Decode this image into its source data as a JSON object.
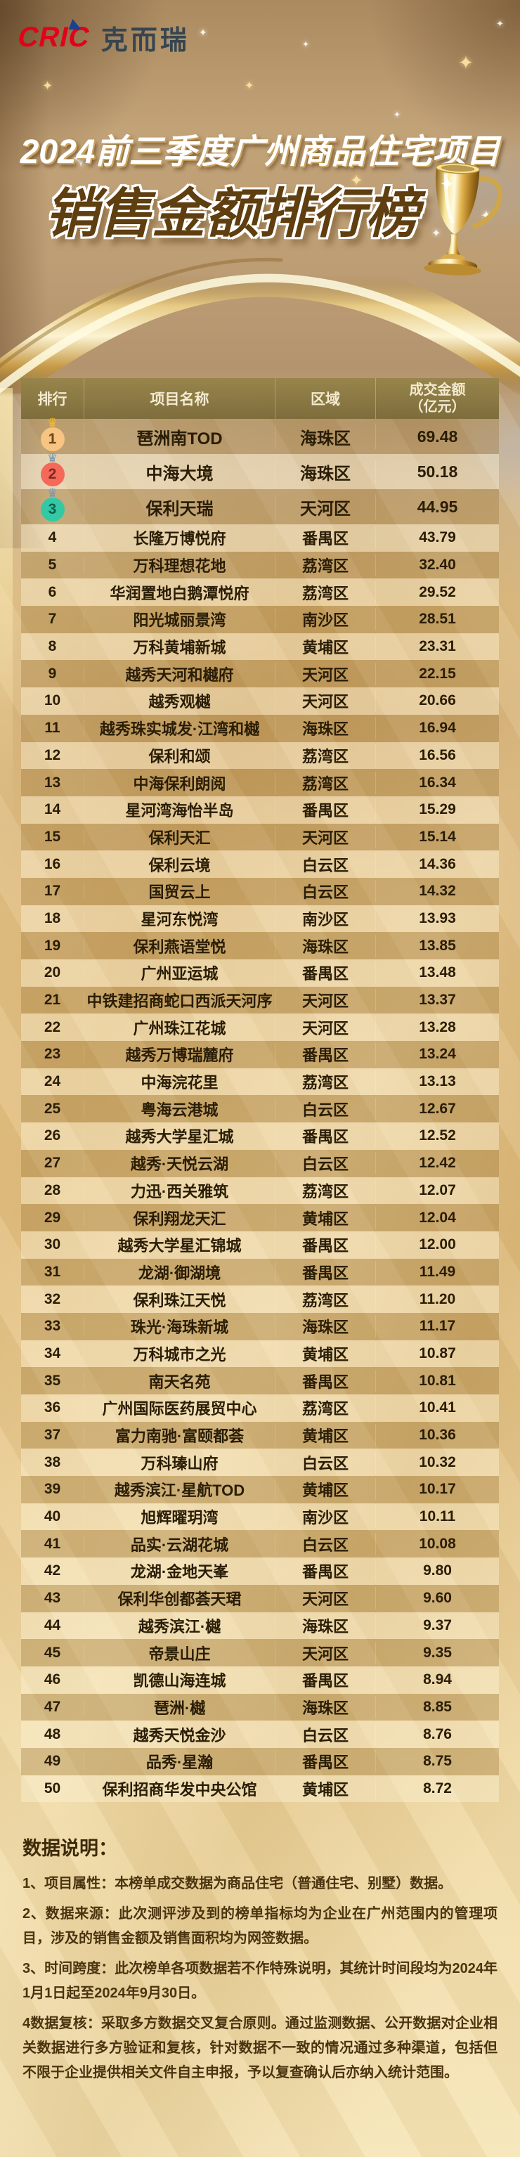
{
  "brand": {
    "logo_text": "CRIC",
    "logo_cn": "克而瑞"
  },
  "header": {
    "title_line1": "2024前三季度广州商品住宅项目",
    "title_line2": "销售金额排行榜"
  },
  "table": {
    "columns": {
      "rank": "排行",
      "name": "项目名称",
      "region": "区域",
      "amount_line1": "成交金额",
      "amount_line2": "（亿元）"
    },
    "rows": [
      {
        "rank": "1",
        "name": "琶洲南TOD",
        "region": "海珠区",
        "amount": "69.48"
      },
      {
        "rank": "2",
        "name": "中海大境",
        "region": "海珠区",
        "amount": "50.18"
      },
      {
        "rank": "3",
        "name": "保利天瑞",
        "region": "天河区",
        "amount": "44.95"
      },
      {
        "rank": "4",
        "name": "长隆万博悦府",
        "region": "番禺区",
        "amount": "43.79"
      },
      {
        "rank": "5",
        "name": "万科理想花地",
        "region": "荔湾区",
        "amount": "32.40"
      },
      {
        "rank": "6",
        "name": "华润置地白鹅潭悦府",
        "region": "荔湾区",
        "amount": "29.52"
      },
      {
        "rank": "7",
        "name": "阳光城丽景湾",
        "region": "南沙区",
        "amount": "28.51"
      },
      {
        "rank": "8",
        "name": "万科黄埔新城",
        "region": "黄埔区",
        "amount": "23.31"
      },
      {
        "rank": "9",
        "name": "越秀天河和樾府",
        "region": "天河区",
        "amount": "22.15"
      },
      {
        "rank": "10",
        "name": "越秀观樾",
        "region": "天河区",
        "amount": "20.66"
      },
      {
        "rank": "11",
        "name": "越秀珠实城发·江湾和樾",
        "region": "海珠区",
        "amount": "16.94"
      },
      {
        "rank": "12",
        "name": "保利和颂",
        "region": "荔湾区",
        "amount": "16.56"
      },
      {
        "rank": "13",
        "name": "中海保利朗阅",
        "region": "荔湾区",
        "amount": "16.34"
      },
      {
        "rank": "14",
        "name": "星河湾海怡半岛",
        "region": "番禺区",
        "amount": "15.29"
      },
      {
        "rank": "15",
        "name": "保利天汇",
        "region": "天河区",
        "amount": "15.14"
      },
      {
        "rank": "16",
        "name": "保利云境",
        "region": "白云区",
        "amount": "14.36"
      },
      {
        "rank": "17",
        "name": "国贸云上",
        "region": "白云区",
        "amount": "14.32"
      },
      {
        "rank": "18",
        "name": "星河东悦湾",
        "region": "南沙区",
        "amount": "13.93"
      },
      {
        "rank": "19",
        "name": "保利燕语堂悦",
        "region": "海珠区",
        "amount": "13.85"
      },
      {
        "rank": "20",
        "name": "广州亚运城",
        "region": "番禺区",
        "amount": "13.48"
      },
      {
        "rank": "21",
        "name": "中铁建招商蛇口西派天河序",
        "region": "天河区",
        "amount": "13.37"
      },
      {
        "rank": "22",
        "name": "广州珠江花城",
        "region": "天河区",
        "amount": "13.28"
      },
      {
        "rank": "23",
        "name": "越秀万博瑞麓府",
        "region": "番禺区",
        "amount": "13.24"
      },
      {
        "rank": "24",
        "name": "中海浣花里",
        "region": "荔湾区",
        "amount": "13.13"
      },
      {
        "rank": "25",
        "name": "粤海云港城",
        "region": "白云区",
        "amount": "12.67"
      },
      {
        "rank": "26",
        "name": "越秀大学星汇城",
        "region": "番禺区",
        "amount": "12.52"
      },
      {
        "rank": "27",
        "name": "越秀·天悦云湖",
        "region": "白云区",
        "amount": "12.42"
      },
      {
        "rank": "28",
        "name": "力迅·西关雅筑",
        "region": "荔湾区",
        "amount": "12.07"
      },
      {
        "rank": "29",
        "name": "保利翔龙天汇",
        "region": "黄埔区",
        "amount": "12.04"
      },
      {
        "rank": "30",
        "name": "越秀大学星汇锦城",
        "region": "番禺区",
        "amount": "12.00"
      },
      {
        "rank": "31",
        "name": "龙湖·御湖境",
        "region": "番禺区",
        "amount": "11.49"
      },
      {
        "rank": "32",
        "name": "保利珠江天悦",
        "region": "荔湾区",
        "amount": "11.20"
      },
      {
        "rank": "33",
        "name": "珠光·海珠新城",
        "region": "海珠区",
        "amount": "11.17"
      },
      {
        "rank": "34",
        "name": "万科城市之光",
        "region": "黄埔区",
        "amount": "10.87"
      },
      {
        "rank": "35",
        "name": "南天名苑",
        "region": "番禺区",
        "amount": "10.81"
      },
      {
        "rank": "36",
        "name": "广州国际医药展贸中心",
        "region": "荔湾区",
        "amount": "10.41"
      },
      {
        "rank": "37",
        "name": "富力南驰·富颐都荟",
        "region": "黄埔区",
        "amount": "10.36"
      },
      {
        "rank": "38",
        "name": "万科瑧山府",
        "region": "白云区",
        "amount": "10.32"
      },
      {
        "rank": "39",
        "name": "越秀滨江·星航TOD",
        "region": "黄埔区",
        "amount": "10.17"
      },
      {
        "rank": "40",
        "name": "旭辉曜玥湾",
        "region": "南沙区",
        "amount": "10.11"
      },
      {
        "rank": "41",
        "name": "品实·云湖花城",
        "region": "白云区",
        "amount": "10.08"
      },
      {
        "rank": "42",
        "name": "龙湖·金地天峯",
        "region": "番禺区",
        "amount": "9.80"
      },
      {
        "rank": "43",
        "name": "保利华创都荟天珺",
        "region": "天河区",
        "amount": "9.60"
      },
      {
        "rank": "44",
        "name": "越秀滨江·樾",
        "region": "海珠区",
        "amount": "9.37"
      },
      {
        "rank": "45",
        "name": "帝景山庄",
        "region": "天河区",
        "amount": "9.35"
      },
      {
        "rank": "46",
        "name": "凯德山海连城",
        "region": "番禺区",
        "amount": "8.94"
      },
      {
        "rank": "47",
        "name": "琶洲·樾",
        "region": "海珠区",
        "amount": "8.85"
      },
      {
        "rank": "48",
        "name": "越秀天悦金沙",
        "region": "白云区",
        "amount": "8.76"
      },
      {
        "rank": "49",
        "name": "品秀·星瀚",
        "region": "番禺区",
        "amount": "8.75"
      },
      {
        "rank": "50",
        "name": "保利招商华发中央公馆",
        "region": "黄埔区",
        "amount": "8.72"
      }
    ]
  },
  "notes": {
    "heading": "数据说明：",
    "items": [
      "1、项目属性：本榜单成交数据为商品住宅（普通住宅、别墅）数据。",
      "2、数据来源：此次测评涉及到的榜单指标均为企业在广州范围内的管理项目，涉及的销售金额及销售面积均为网签数据。",
      "3、时间跨度：此次榜单各项数据若不作特殊说明，其统计时间段均为2024年1月1日起至2024年9月30日。",
      "4数据复核：采取多方数据交叉复合原则。通过监测数据、公开数据对企业相关数据进行多方验证和复核，针对数据不一致的情况通过多种渠道，包括但不限于企业提供相关文件自主申报，予以复查确认后亦纳入统计范围。"
    ]
  },
  "colors": {
    "cric_red": "#e30019",
    "cric_blue": "#1c3f8f",
    "brand_text": "#36454f",
    "title_brown": "#5f3e0f",
    "row_text": "#2a1d06",
    "note_text": "#4a3410",
    "medal1_crown": "#f0b92c",
    "medal1_circle": "#f7c481",
    "medal2_crown": "#7d96ad",
    "medal2_circle": "#f4695a",
    "medal3_crown": "#7d96ad",
    "medal3_circle": "#33c9a5",
    "gold_ribbon": "#f6e3ae",
    "header_bg": "#8a7b41"
  },
  "chart_data": {
    "type": "table",
    "title": "2024前三季度广州商品住宅项目销售金额排行榜",
    "columns": [
      "排行",
      "项目名称",
      "区域",
      "成交金额（亿元）"
    ],
    "rows": [
      [
        1,
        "琶洲南TOD",
        "海珠区",
        69.48
      ],
      [
        2,
        "中海大境",
        "海珠区",
        50.18
      ],
      [
        3,
        "保利天瑞",
        "天河区",
        44.95
      ],
      [
        4,
        "长隆万博悦府",
        "番禺区",
        43.79
      ],
      [
        5,
        "万科理想花地",
        "荔湾区",
        32.4
      ],
      [
        6,
        "华润置地白鹅潭悦府",
        "荔湾区",
        29.52
      ],
      [
        7,
        "阳光城丽景湾",
        "南沙区",
        28.51
      ],
      [
        8,
        "万科黄埔新城",
        "黄埔区",
        23.31
      ],
      [
        9,
        "越秀天河和樾府",
        "天河区",
        22.15
      ],
      [
        10,
        "越秀观樾",
        "天河区",
        20.66
      ],
      [
        11,
        "越秀珠实城发·江湾和樾",
        "海珠区",
        16.94
      ],
      [
        12,
        "保利和颂",
        "荔湾区",
        16.56
      ],
      [
        13,
        "中海保利朗阅",
        "荔湾区",
        16.34
      ],
      [
        14,
        "星河湾海怡半岛",
        "番禺区",
        15.29
      ],
      [
        15,
        "保利天汇",
        "天河区",
        15.14
      ],
      [
        16,
        "保利云境",
        "白云区",
        14.36
      ],
      [
        17,
        "国贸云上",
        "白云区",
        14.32
      ],
      [
        18,
        "星河东悦湾",
        "南沙区",
        13.93
      ],
      [
        19,
        "保利燕语堂悦",
        "海珠区",
        13.85
      ],
      [
        20,
        "广州亚运城",
        "番禺区",
        13.48
      ],
      [
        21,
        "中铁建招商蛇口西派天河序",
        "天河区",
        13.37
      ],
      [
        22,
        "广州珠江花城",
        "天河区",
        13.28
      ],
      [
        23,
        "越秀万博瑞麓府",
        "番禺区",
        13.24
      ],
      [
        24,
        "中海浣花里",
        "荔湾区",
        13.13
      ],
      [
        25,
        "粤海云港城",
        "白云区",
        12.67
      ],
      [
        26,
        "越秀大学星汇城",
        "番禺区",
        12.52
      ],
      [
        27,
        "越秀·天悦云湖",
        "白云区",
        12.42
      ],
      [
        28,
        "力迅·西关雅筑",
        "荔湾区",
        12.07
      ],
      [
        29,
        "保利翔龙天汇",
        "黄埔区",
        12.04
      ],
      [
        30,
        "越秀大学星汇锦城",
        "番禺区",
        12.0
      ],
      [
        31,
        "龙湖·御湖境",
        "番禺区",
        11.49
      ],
      [
        32,
        "保利珠江天悦",
        "荔湾区",
        11.2
      ],
      [
        33,
        "珠光·海珠新城",
        "海珠区",
        11.17
      ],
      [
        34,
        "万科城市之光",
        "黄埔区",
        10.87
      ],
      [
        35,
        "南天名苑",
        "番禺区",
        10.81
      ],
      [
        36,
        "广州国际医药展贸中心",
        "荔湾区",
        10.41
      ],
      [
        37,
        "富力南驰·富颐都荟",
        "黄埔区",
        10.36
      ],
      [
        38,
        "万科瑧山府",
        "白云区",
        10.32
      ],
      [
        39,
        "越秀滨江·星航TOD",
        "黄埔区",
        10.17
      ],
      [
        40,
        "旭辉曜玥湾",
        "南沙区",
        10.11
      ],
      [
        41,
        "品实·云湖花城",
        "白云区",
        10.08
      ],
      [
        42,
        "龙湖·金地天峯",
        "番禺区",
        9.8
      ],
      [
        43,
        "保利华创都荟天珺",
        "天河区",
        9.6
      ],
      [
        44,
        "越秀滨江·樾",
        "海珠区",
        9.37
      ],
      [
        45,
        "帝景山庄",
        "天河区",
        9.35
      ],
      [
        46,
        "凯德山海连城",
        "番禺区",
        8.94
      ],
      [
        47,
        "琶洲·樾",
        "海珠区",
        8.85
      ],
      [
        48,
        "越秀天悦金沙",
        "白云区",
        8.76
      ],
      [
        49,
        "品秀·星瀚",
        "番禺区",
        8.75
      ],
      [
        50,
        "保利招商华发中央公馆",
        "黄埔区",
        8.72
      ]
    ]
  }
}
